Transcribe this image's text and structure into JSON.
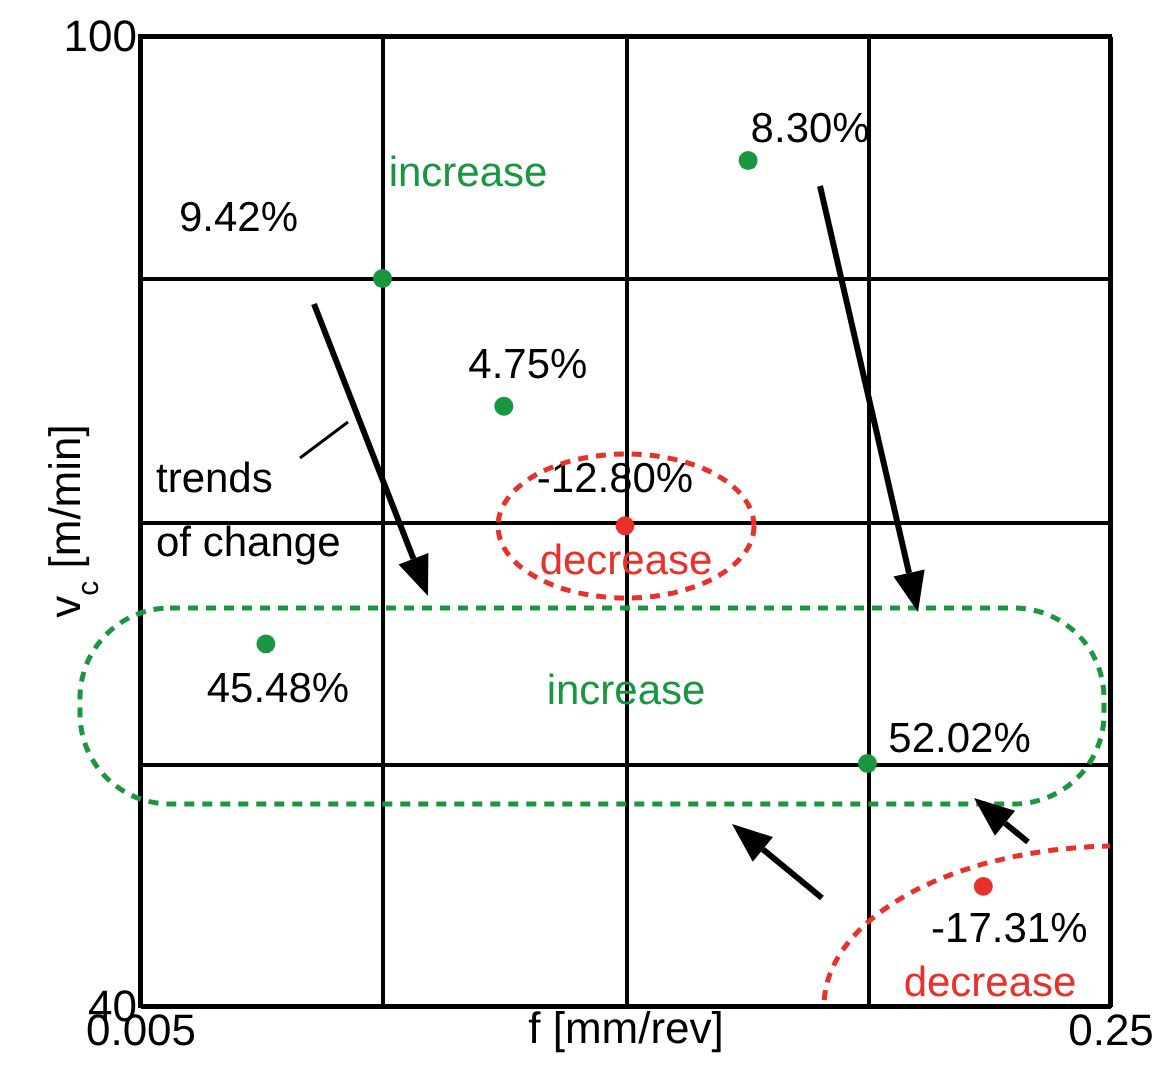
{
  "chart_data": {
    "type": "scatter",
    "xlabel": "f [mm/rev]",
    "ylabel": "v$_{c}$ [m/min]",
    "xlim": [
      0.005,
      0.25
    ],
    "xticks": [
      0.005,
      {
        "value": 0.06625,
        "label": null
      },
      {
        "value": 0.1275,
        "label": null
      },
      {
        "value": 0.18875,
        "label": null
      },
      0.25
    ],
    "ylim": [
      40,
      100
    ],
    "yticks": [
      40,
      {
        "value": 55,
        "label": null
      },
      {
        "value": 70,
        "label": null
      },
      {
        "value": 85,
        "label": null
      },
      100
    ],
    "grid": true,
    "marker": "circle",
    "series": [
      {
        "color": "#1a9641",
        "x": [
          0.06625,
          0.1586,
          0.0969,
          0.0368,
          0.18875
        ],
        "values": [
          85,
          92.3,
          77.1,
          62.4,
          55
        ]
      },
      {
        "color": "#e8312a",
        "x": [
          0.1275,
          0.218
        ],
        "values": [
          69.7,
          47.4
        ]
      }
    ],
    "annotations": [
      {
        "text": "9.42%",
        "x": 0.06625,
        "y": 85
      },
      {
        "text": "8.30%",
        "x": 0.1586,
        "y": 92.3
      },
      {
        "text": "4.75%",
        "x": 0.0969,
        "y": 77.1
      },
      {
        "text": "45.48%",
        "x": 0.0368,
        "y": 62.4
      },
      {
        "text": "52.02%",
        "x": 0.18875,
        "y": 55
      },
      {
        "text": "-12.80%",
        "x": 0.1275,
        "y": 69.7
      },
      {
        "text": "-17.31%",
        "x": 0.218,
        "y": 47.4
      },
      "increase",
      "decrease",
      "increase",
      "decrease",
      "trends of change"
    ]
  }
}
